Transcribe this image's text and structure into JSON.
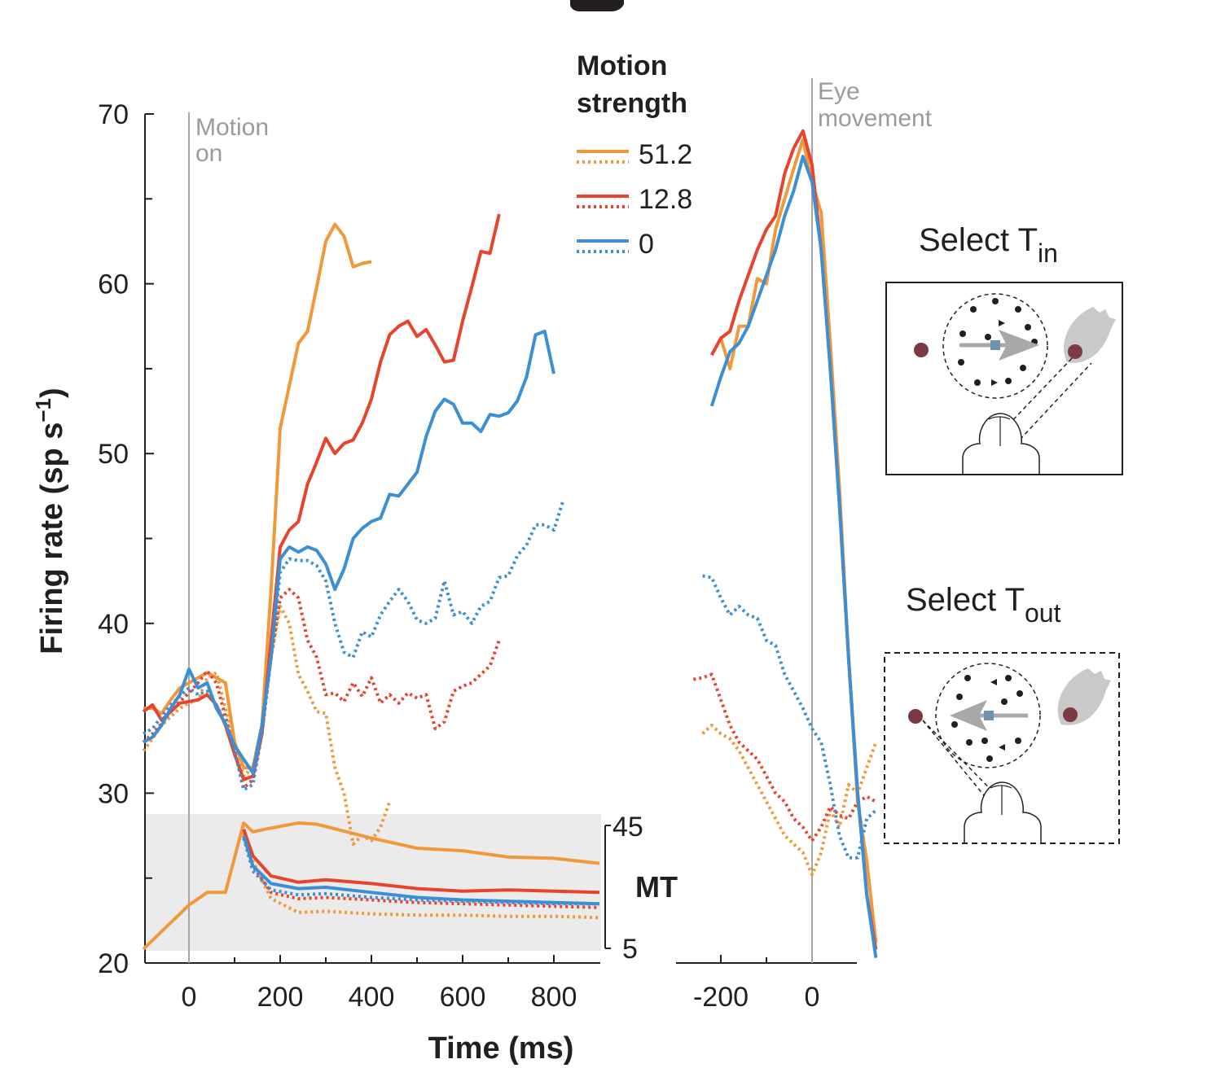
{
  "chart_data": {
    "type": "line",
    "ylabel": "Firing rate (sp s",
    "ylabel_sup": "−1",
    "ylabel_close": ")",
    "xlabel": "Time (ms)",
    "ylim": [
      20,
      70
    ],
    "yticks": [
      20,
      30,
      40,
      50,
      60,
      70
    ],
    "y_minor_ticks": [
      25,
      35,
      45,
      55,
      65
    ],
    "left_panel": {
      "xlim": [
        -100,
        900
      ],
      "xticks": [
        0,
        200,
        400,
        600,
        800
      ],
      "marker_label": [
        "Motion",
        "on"
      ]
    },
    "right_panel": {
      "xlim": [
        -300,
        100
      ],
      "xticks": [
        -200,
        0
      ],
      "marker_label": [
        "Eye",
        "movement"
      ]
    },
    "legend": {
      "title": [
        "Motion",
        "strength"
      ],
      "entries": [
        {
          "label": "51.2",
          "color": "#f0983a"
        },
        {
          "label": "12.8",
          "color": "#e8432d"
        },
        {
          "label": "0",
          "color": "#3d8fd4"
        }
      ]
    },
    "mt_inset": {
      "label": "MT",
      "top_tick": "45",
      "bottom_tick": "5",
      "xlim": [
        -100,
        900
      ]
    },
    "series": [
      {
        "name": "51.2",
        "panel": "left",
        "style": "solid",
        "color": "#f0983a",
        "x": [
          -100,
          -80,
          -60,
          -40,
          -20,
          0,
          20,
          40,
          60,
          80,
          100,
          120,
          140,
          160,
          180,
          200,
          220,
          240,
          260,
          280,
          300,
          320,
          340,
          360,
          380,
          400
        ],
        "y": [
          35,
          35,
          34.7,
          35.5,
          36.2,
          36.5,
          36.8,
          37.1,
          36.8,
          36.5,
          33,
          31.5,
          31.5,
          34,
          42,
          51.5,
          54,
          56.5,
          57.2,
          59.8,
          62.5,
          63.5,
          62.8,
          61,
          61.2,
          61.3
        ]
      },
      {
        "name": "51.2",
        "panel": "left",
        "style": "dotted",
        "color": "#f0983a",
        "x": [
          -100,
          -80,
          -60,
          -40,
          -20,
          0,
          20,
          40,
          60,
          80,
          100,
          120,
          140,
          160,
          180,
          200,
          220,
          240,
          260,
          280,
          300,
          320,
          340,
          360,
          380,
          400,
          420,
          440
        ],
        "y": [
          32.5,
          33.2,
          34,
          34.5,
          35,
          35.3,
          35.5,
          36.8,
          37.1,
          35,
          33,
          31,
          31.5,
          34,
          38,
          41,
          40,
          37,
          36,
          34.8,
          34.7,
          31.5,
          30,
          27,
          27.5,
          27.2,
          28,
          29.5
        ]
      },
      {
        "name": "12.8",
        "panel": "left",
        "style": "solid",
        "color": "#e8432d",
        "x": [
          -100,
          -80,
          -60,
          -40,
          -20,
          0,
          20,
          40,
          60,
          80,
          100,
          120,
          140,
          160,
          180,
          200,
          220,
          240,
          260,
          280,
          300,
          320,
          340,
          360,
          380,
          400,
          420,
          440,
          460,
          480,
          500,
          520,
          540,
          560,
          580,
          600,
          620,
          640,
          660,
          680
        ],
        "y": [
          34.8,
          35.2,
          34.3,
          34.8,
          35.3,
          35.4,
          35.5,
          35.8,
          35.2,
          34,
          32.3,
          30.8,
          31,
          33.5,
          39,
          44.5,
          45.5,
          46,
          48.2,
          49.5,
          50.9,
          50,
          50.6,
          50.8,
          51.8,
          53.2,
          55.4,
          57,
          57.5,
          57.8,
          56.9,
          57.3,
          56.4,
          55.4,
          55.5,
          57.8,
          59.8,
          61.9,
          61.8,
          64.1
        ]
      },
      {
        "name": "12.8",
        "panel": "left",
        "style": "dotted",
        "color": "#e8432d",
        "x": [
          -100,
          -80,
          -60,
          -40,
          -20,
          0,
          20,
          40,
          60,
          80,
          100,
          120,
          140,
          160,
          180,
          200,
          220,
          240,
          260,
          280,
          300,
          320,
          340,
          360,
          380,
          400,
          420,
          440,
          460,
          480,
          500,
          520,
          540,
          560,
          580,
          600,
          620,
          640,
          660,
          680
        ],
        "y": [
          33,
          33.5,
          34.1,
          34.8,
          35.4,
          35.9,
          36.5,
          37.2,
          36.5,
          34.5,
          32.5,
          30.3,
          30.8,
          33.5,
          38,
          41.5,
          42,
          41.5,
          39,
          38,
          35.8,
          35.9,
          35.4,
          36.5,
          35.7,
          36.8,
          35.3,
          35.8,
          35.3,
          35.9,
          35.6,
          35.8,
          33.8,
          34.2,
          36,
          36.3,
          36.5,
          37,
          37.5,
          39
        ]
      },
      {
        "name": "0",
        "panel": "left",
        "style": "solid",
        "color": "#3d8fd4",
        "x": [
          -100,
          -80,
          -60,
          -40,
          -20,
          0,
          20,
          40,
          60,
          80,
          100,
          120,
          140,
          160,
          180,
          200,
          220,
          240,
          260,
          280,
          300,
          320,
          340,
          360,
          380,
          400,
          420,
          440,
          460,
          480,
          500,
          520,
          540,
          560,
          580,
          600,
          620,
          640,
          660,
          680,
          700,
          720,
          740,
          760,
          780,
          800
        ],
        "y": [
          33,
          33.3,
          34,
          35,
          35.8,
          37.3,
          36.2,
          36.5,
          35,
          34.1,
          32.8,
          32,
          31.2,
          34,
          38,
          43.8,
          44.5,
          44.2,
          44.5,
          44.3,
          43.5,
          42,
          43.2,
          45,
          45.6,
          46,
          46.2,
          47.6,
          47.5,
          48.2,
          48.9,
          51,
          52.5,
          53.2,
          52.9,
          51.8,
          51.8,
          51.3,
          52.3,
          52.2,
          52.4,
          53.1,
          54.5,
          57,
          57.2,
          54.7
        ]
      },
      {
        "name": "0",
        "panel": "left",
        "style": "dotted",
        "color": "#3d8fd4",
        "x": [
          -100,
          -80,
          -60,
          -40,
          -20,
          0,
          20,
          40,
          60,
          80,
          100,
          120,
          140,
          160,
          180,
          200,
          220,
          240,
          260,
          280,
          300,
          320,
          340,
          360,
          380,
          400,
          420,
          440,
          460,
          480,
          500,
          520,
          540,
          560,
          580,
          600,
          620,
          640,
          660,
          680,
          700,
          720,
          740,
          760,
          780,
          800,
          820
        ],
        "y": [
          33.5,
          33.8,
          34.5,
          35.2,
          35.7,
          36.2,
          35.8,
          36,
          35.2,
          34.2,
          32.5,
          30.2,
          30.5,
          33.5,
          38,
          43,
          43.8,
          43.7,
          43.7,
          43.4,
          42.5,
          40,
          38.3,
          38,
          39.5,
          39.2,
          40.5,
          41.3,
          42,
          41.3,
          40.2,
          40,
          40.3,
          42.5,
          40.5,
          40.7,
          40,
          41,
          41.3,
          42.7,
          42.8,
          44,
          44.6,
          45.8,
          45.8,
          45.5,
          47.2
        ]
      },
      {
        "name": "51.2",
        "panel": "right",
        "style": "solid",
        "color": "#f0983a",
        "x": [
          -200,
          -180,
          -160,
          -140,
          -120,
          -100,
          -80,
          -60,
          -40,
          -20,
          0,
          20,
          40,
          60,
          80,
          100,
          120,
          140
        ],
        "y": [
          56.8,
          55,
          57.5,
          57.5,
          60.3,
          60,
          63.2,
          65,
          66.8,
          68.5,
          66,
          64.2,
          56.5,
          48,
          38,
          29.5,
          26,
          21.2
        ]
      },
      {
        "name": "51.2",
        "panel": "right",
        "style": "dotted",
        "color": "#f0983a",
        "x": [
          -240,
          -220,
          -200,
          -180,
          -160,
          -140,
          -120,
          -100,
          -80,
          -60,
          -40,
          -20,
          0,
          20,
          40,
          60,
          80,
          100,
          120,
          140
        ],
        "y": [
          33.5,
          34,
          33.5,
          33.2,
          32.5,
          31.5,
          30.5,
          29.5,
          28.5,
          27.5,
          27,
          26.5,
          25.2,
          26.5,
          29,
          28,
          30.5,
          30,
          31.5,
          33
        ]
      },
      {
        "name": "12.8",
        "panel": "right",
        "style": "solid",
        "color": "#e8432d",
        "x": [
          -220,
          -200,
          -180,
          -160,
          -140,
          -120,
          -100,
          -80,
          -60,
          -40,
          -20,
          0,
          20,
          40,
          60,
          80,
          100,
          120,
          140
        ],
        "y": [
          55.8,
          56.8,
          57.2,
          59,
          60.5,
          62,
          63.2,
          64,
          66.5,
          68,
          69,
          67,
          62,
          55,
          47,
          38,
          30,
          24,
          20.8
        ]
      },
      {
        "name": "12.8",
        "panel": "right",
        "style": "dotted",
        "color": "#e8432d",
        "x": [
          -260,
          -240,
          -220,
          -200,
          -180,
          -160,
          -140,
          -120,
          -100,
          -80,
          -60,
          -40,
          -20,
          0,
          20,
          40,
          60,
          80,
          100,
          120,
          140
        ],
        "y": [
          36.7,
          36.8,
          37,
          35.5,
          34,
          33,
          32.5,
          32,
          31,
          30,
          29.5,
          28.5,
          28,
          27.2,
          28,
          29.2,
          28.7,
          28.5,
          29.5,
          29.8,
          29.5
        ]
      },
      {
        "name": "0",
        "panel": "right",
        "style": "solid",
        "color": "#3d8fd4",
        "x": [
          -220,
          -200,
          -180,
          -160,
          -140,
          -120,
          -100,
          -80,
          -60,
          -40,
          -20,
          0,
          20,
          40,
          60,
          80,
          100,
          120,
          140
        ],
        "y": [
          52.8,
          54.5,
          56,
          56.5,
          57.5,
          59,
          60.5,
          62,
          64,
          65.5,
          67.5,
          66,
          62,
          55,
          47,
          38,
          30,
          24,
          20.3
        ]
      },
      {
        "name": "0",
        "panel": "right",
        "style": "dotted",
        "color": "#3d8fd4",
        "x": [
          -240,
          -220,
          -200,
          -180,
          -160,
          -140,
          -120,
          -100,
          -80,
          -60,
          -40,
          -20,
          0,
          20,
          40,
          60,
          80,
          100,
          120,
          140
        ],
        "y": [
          42.8,
          42.7,
          41.5,
          40.5,
          41,
          40.5,
          40.3,
          39,
          38.7,
          37,
          36,
          35,
          33.8,
          33,
          30.5,
          27.5,
          26.2,
          26.2,
          28.5,
          29
        ]
      },
      {
        "name": "51.2",
        "panel": "mt",
        "style": "solid",
        "color": "#f0983a",
        "x": [
          -100,
          0,
          20,
          40,
          60,
          80,
          120,
          140,
          180,
          240,
          280,
          400,
          500,
          600,
          700,
          800,
          900
        ],
        "y": [
          0,
          0.35,
          0.4,
          0.45,
          0.45,
          0.45,
          1,
          0.93,
          0.96,
          1,
          0.99,
          0.88,
          0.8,
          0.78,
          0.73,
          0.72,
          0.68
        ]
      },
      {
        "name": "51.2",
        "panel": "mt",
        "style": "dotted",
        "color": "#f0983a",
        "x": [
          120,
          140,
          180,
          240,
          300,
          400,
          500,
          600,
          700,
          800,
          900
        ],
        "y": [
          0.92,
          0.7,
          0.4,
          0.29,
          0.3,
          0.28,
          0.27,
          0.27,
          0.26,
          0.26,
          0.25
        ]
      },
      {
        "name": "12.8",
        "panel": "mt",
        "style": "solid",
        "color": "#e8432d",
        "x": [
          120,
          140,
          180,
          240,
          300,
          400,
          500,
          600,
          700,
          800,
          900
        ],
        "y": [
          0.95,
          0.74,
          0.58,
          0.53,
          0.55,
          0.52,
          0.48,
          0.46,
          0.47,
          0.46,
          0.45
        ]
      },
      {
        "name": "12.8",
        "panel": "mt",
        "style": "dotted",
        "color": "#e8432d",
        "x": [
          120,
          140,
          180,
          240,
          300,
          400,
          500,
          600,
          700,
          800,
          900
        ],
        "y": [
          0.9,
          0.66,
          0.45,
          0.4,
          0.41,
          0.39,
          0.37,
          0.36,
          0.35,
          0.34,
          0.33
        ]
      },
      {
        "name": "0",
        "panel": "mt",
        "style": "solid",
        "color": "#3d8fd4",
        "x": [
          120,
          140,
          180,
          240,
          300,
          400,
          500,
          600,
          700,
          800,
          900
        ],
        "y": [
          0.9,
          0.66,
          0.52,
          0.48,
          0.49,
          0.45,
          0.41,
          0.39,
          0.38,
          0.37,
          0.36
        ]
      },
      {
        "name": "0",
        "panel": "mt",
        "style": "dotted",
        "color": "#3d8fd4",
        "x": [
          120,
          140,
          180,
          240,
          300,
          400,
          500,
          600,
          700,
          800,
          900
        ],
        "y": [
          0.88,
          0.62,
          0.47,
          0.43,
          0.44,
          0.41,
          0.39,
          0.38,
          0.37,
          0.36,
          0.36
        ]
      }
    ]
  },
  "insets": {
    "select_tin": {
      "title": "Select  T",
      "sub": "in"
    },
    "select_tout": {
      "title": "Select  T",
      "sub": "out"
    }
  },
  "colors": {
    "target": "#7a3b45",
    "response_field": "#c9c9c9",
    "dots": "#231f20",
    "motion_arrow": "#a8a8a8",
    "fixation": "#6f92ad",
    "mt_background": "#ebebeb",
    "marker_line": "#a5a5a5"
  }
}
